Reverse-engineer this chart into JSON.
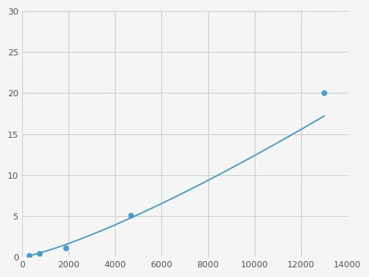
{
  "x_points": [
    300,
    750,
    1875,
    4688,
    13000
  ],
  "y_points": [
    0.2,
    0.4,
    1.1,
    5.1,
    20.0
  ],
  "line_color": "#4a9cc7",
  "marker_color": "#4a9cc7",
  "marker_size": 5,
  "linewidth": 1.5,
  "xlim": [
    0,
    14000
  ],
  "ylim": [
    0,
    30
  ],
  "xticks": [
    0,
    2000,
    4000,
    6000,
    8000,
    10000,
    12000,
    14000
  ],
  "yticks": [
    0,
    5,
    10,
    15,
    20,
    25,
    30
  ],
  "grid_color": "#cccccc",
  "fig_background": "#f5f5f5"
}
